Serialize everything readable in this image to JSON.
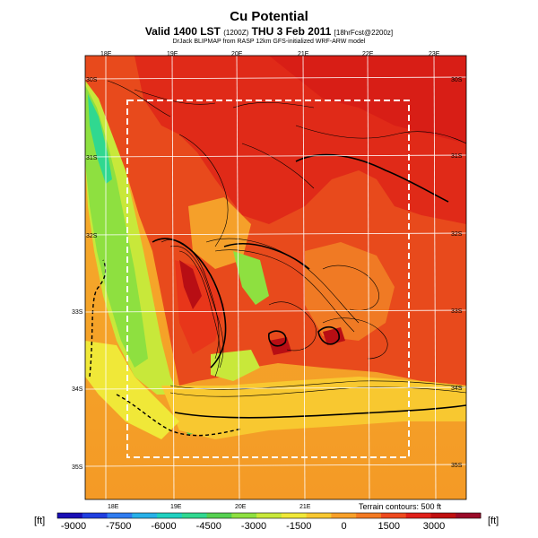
{
  "title": "Cu Potential",
  "subtitle_main": "Valid 1400 LST",
  "subtitle_small1": "(1200Z)",
  "subtitle_date": "THU 3 Feb 2011",
  "subtitle_small2": "[18hrFcst@2200z]",
  "credit": "DrJack BLIPMAP from RASP 12km GFS-initialized WRF-ARW model",
  "terrain_note": "Terrain contours: 500 ft",
  "units_left": "[ft]",
  "units_right": "[ft]",
  "lon_labels": [
    "18E",
    "19E",
    "20E",
    "21E",
    "22E",
    "23E"
  ],
  "lat_labels": [
    "30S",
    "31S",
    "32S",
    "33S",
    "34S",
    "35S"
  ],
  "colorbar": {
    "ticks": [
      "-9000",
      "-7500",
      "-6000",
      "-4500",
      "-3000",
      "-1500",
      "0",
      "1500",
      "3000"
    ],
    "colors": [
      "#1a0fb5",
      "#1f3fe0",
      "#2f7cf0",
      "#27b0e8",
      "#1fd0c0",
      "#30d890",
      "#55d050",
      "#8ee040",
      "#c8e83a",
      "#f0e838",
      "#f8c830",
      "#f8a028",
      "#f47a22",
      "#ee4a1e",
      "#e0201a",
      "#c01010",
      "#9a0a28"
    ]
  }
}
